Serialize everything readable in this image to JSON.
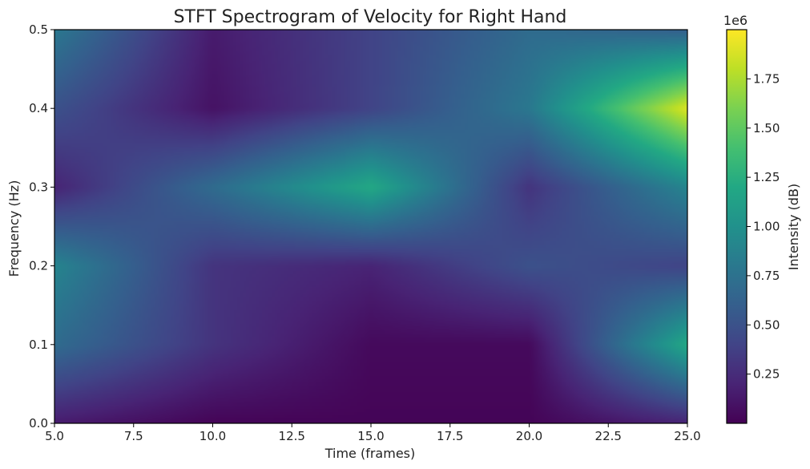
{
  "chart_data": {
    "type": "heatmap",
    "title": "STFT Spectrogram of Velocity for Right Hand",
    "xlabel": "Time (frames)",
    "ylabel": "Frequency (Hz)",
    "colorbar_label": "Intensity (dB)",
    "colorbar_offset": "1e6",
    "colormap": "viridis",
    "xlim": [
      5.0,
      25.0
    ],
    "ylim": [
      0.0,
      0.5
    ],
    "clim": [
      0,
      2000000
    ],
    "x_ticks": [
      "5.0",
      "7.5",
      "10.0",
      "12.5",
      "15.0",
      "17.5",
      "20.0",
      "22.5",
      "25.0"
    ],
    "y_ticks": [
      "0.0",
      "0.1",
      "0.2",
      "0.3",
      "0.4",
      "0.5"
    ],
    "colorbar_ticks": [
      "0.25",
      "0.50",
      "0.75",
      "1.00",
      "1.25",
      "1.50",
      "1.75"
    ],
    "x": [
      5,
      10,
      15,
      20,
      25
    ],
    "y": [
      0.0,
      0.1,
      0.2,
      0.3,
      0.4,
      0.5
    ],
    "z": [
      [
        150000,
        20000,
        20000,
        20000,
        200000
      ],
      [
        700000,
        300000,
        50000,
        50000,
        1200000
      ],
      [
        900000,
        300000,
        200000,
        500000,
        400000
      ],
      [
        200000,
        700000,
        1200000,
        300000,
        900000
      ],
      [
        500000,
        100000,
        400000,
        800000,
        1900000
      ],
      [
        800000,
        150000,
        400000,
        700000,
        600000
      ]
    ]
  }
}
